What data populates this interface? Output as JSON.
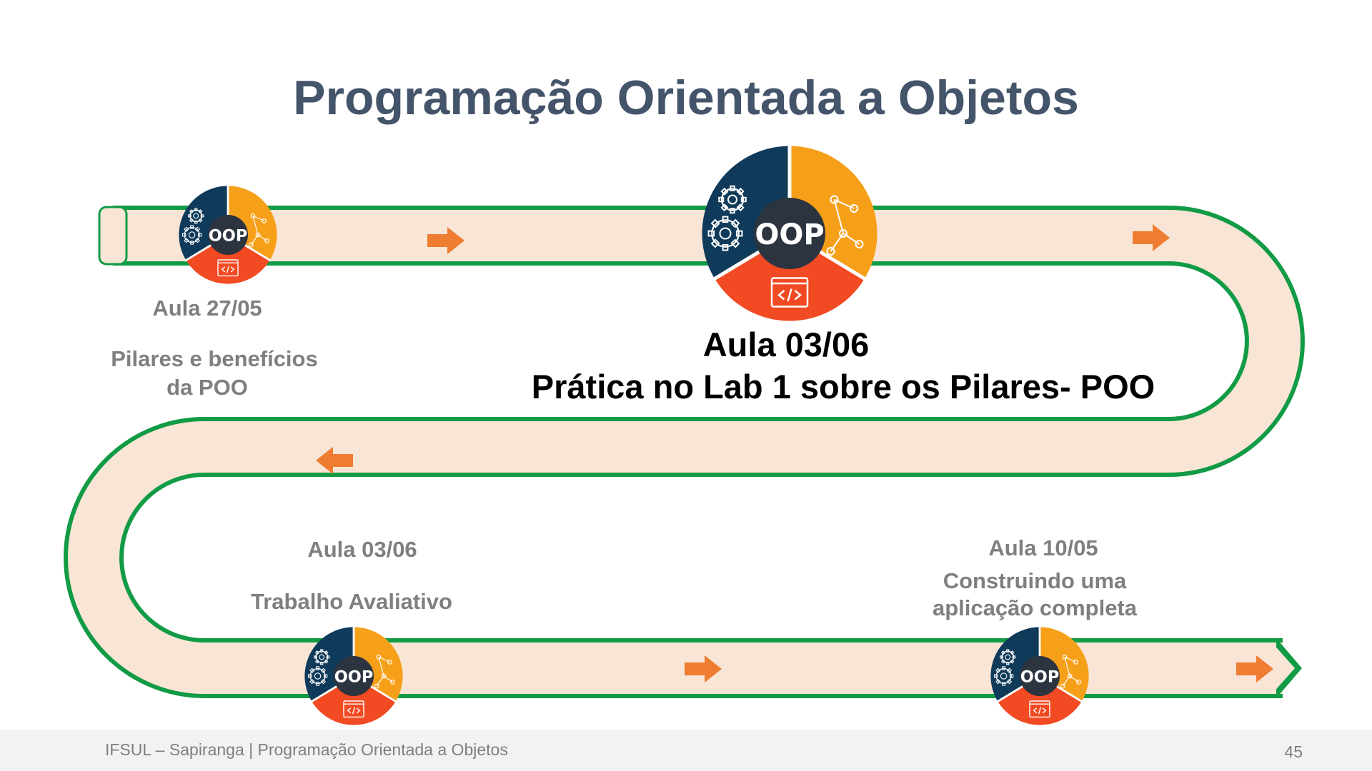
{
  "slide": {
    "title": "Programação Orientada a Objetos",
    "icon_text": "OOP",
    "colors": {
      "title": "#44546a",
      "road_fill": "#f9e5d6",
      "road_border": "#129b45",
      "arrow": "#ee7d31",
      "segment_navy": "#0f3a5a",
      "segment_orange": "#f6a01a",
      "segment_red": "#f24a22",
      "icon_center": "#2c3440"
    },
    "milestones": [
      {
        "date": "Aula 27/05",
        "desc_line1": "Pilares e benefícios",
        "desc_line2": "da POO"
      },
      {
        "date": "Aula 03/06",
        "desc_line1": "Prática no Lab 1 sobre os Pilares- POO"
      },
      {
        "date": "Aula 03/06",
        "desc_line1": "Trabalho Avaliativo"
      },
      {
        "date": "Aula 10/05",
        "desc_line1": "Construindo uma",
        "desc_line2": "aplicação completa"
      }
    ]
  },
  "footer": {
    "text": "IFSUL – Sapiranga |  Programação Orientada a Objetos",
    "page_number": "45"
  }
}
